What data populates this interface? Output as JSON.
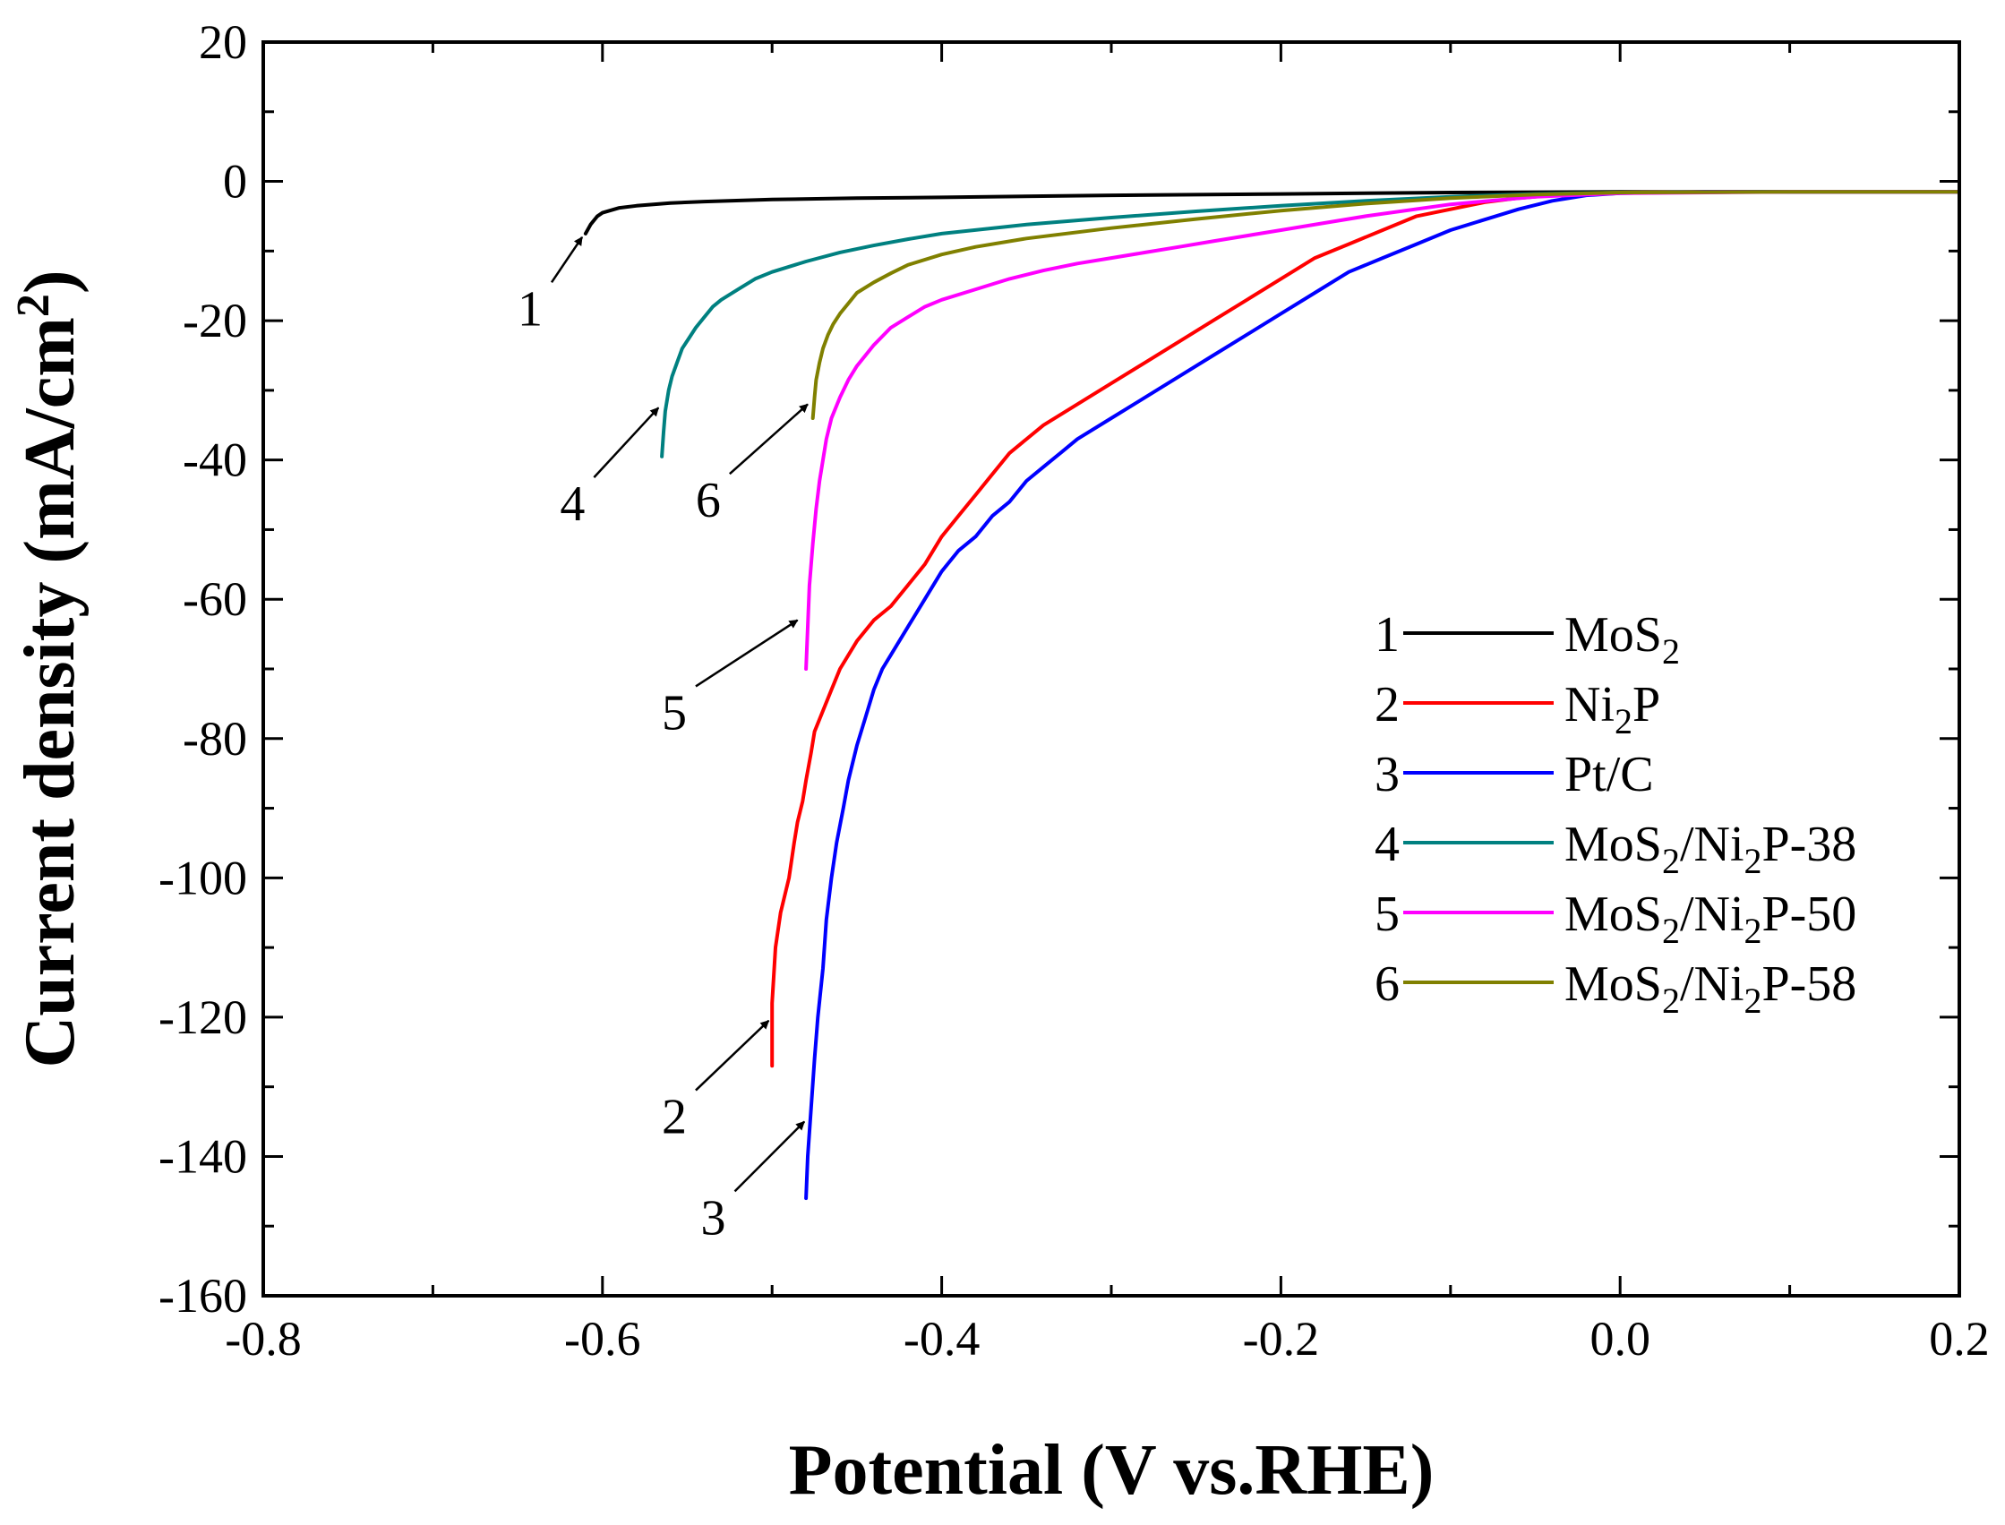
{
  "chart_data": {
    "type": "line",
    "xlabel": "Potential (V vs.RHE)",
    "ylabel": "Current density (mA/cm²)",
    "ylabel_parts": {
      "main": "Current density (mA/cm",
      "sup": "2",
      "close": ")"
    },
    "xlim": [
      -0.8,
      0.2
    ],
    "ylim": [
      -160,
      20
    ],
    "x_ticks": [
      -0.8,
      -0.6,
      -0.4,
      -0.2,
      0.0,
      0.2
    ],
    "x_tick_labels": [
      "-0.8",
      "-0.6",
      "-0.4",
      "-0.2",
      "0.0",
      "0.2"
    ],
    "y_ticks": [
      20,
      0,
      -20,
      -40,
      -60,
      -80,
      -100,
      -120,
      -140,
      -160
    ],
    "y_tick_labels": [
      "20",
      "0",
      "-20",
      "-40",
      "-60",
      "-80",
      "-100",
      "-120",
      "-140",
      "-160"
    ],
    "grid": false,
    "legend_position": "right",
    "series": [
      {
        "id": "1",
        "label": "MoS2",
        "label_parts": [
          {
            "t": "MoS"
          },
          {
            "t": "2",
            "sub": true
          }
        ],
        "color": "#000000",
        "x": [
          -0.61,
          -0.607,
          -0.603,
          -0.6,
          -0.59,
          -0.58,
          -0.56,
          -0.54,
          -0.5,
          -0.45,
          -0.4,
          -0.3,
          -0.2,
          -0.1,
          0.0,
          0.1,
          0.2
        ],
        "y": [
          -7.5,
          -6.2,
          -5.0,
          -4.5,
          -3.8,
          -3.5,
          -3.1,
          -2.9,
          -2.6,
          -2.4,
          -2.3,
          -2.0,
          -1.8,
          -1.6,
          -1.5,
          -1.5,
          -1.5
        ]
      },
      {
        "id": "2",
        "label": "Ni2P",
        "label_parts": [
          {
            "t": "Ni"
          },
          {
            "t": "2",
            "sub": true
          },
          {
            "t": "P"
          }
        ],
        "color": "#ff0000",
        "x": [
          -0.5,
          -0.5,
          -0.498,
          -0.495,
          -0.49,
          -0.487,
          -0.485,
          -0.482,
          -0.48,
          -0.477,
          -0.475,
          -0.47,
          -0.465,
          -0.46,
          -0.45,
          -0.44,
          -0.43,
          -0.42,
          -0.41,
          -0.4,
          -0.39,
          -0.38,
          -0.37,
          -0.36,
          -0.34,
          -0.32,
          -0.3,
          -0.28,
          -0.26,
          -0.24,
          -0.22,
          -0.2,
          -0.18,
          -0.16,
          -0.14,
          -0.12,
          -0.1,
          -0.08,
          -0.06,
          -0.04,
          -0.02,
          0.0,
          0.05,
          0.1,
          0.2
        ],
        "y": [
          -127,
          -118,
          -110,
          -105,
          -100,
          -95,
          -92,
          -89,
          -86,
          -82,
          -79,
          -76,
          -73,
          -70,
          -66,
          -63,
          -61,
          -58,
          -55,
          -51,
          -48,
          -45,
          -42,
          -39,
          -35,
          -32,
          -29,
          -26,
          -23,
          -20,
          -17,
          -14,
          -11,
          -9,
          -7,
          -5,
          -4,
          -3,
          -2.4,
          -2.0,
          -1.8,
          -1.6,
          -1.5,
          -1.5,
          -1.5
        ]
      },
      {
        "id": "3",
        "label": "Pt/C",
        "label_parts": [
          {
            "t": "Pt/C"
          }
        ],
        "color": "#0000ff",
        "x": [
          -0.48,
          -0.479,
          -0.477,
          -0.475,
          -0.473,
          -0.47,
          -0.468,
          -0.465,
          -0.462,
          -0.458,
          -0.455,
          -0.45,
          -0.445,
          -0.44,
          -0.435,
          -0.43,
          -0.42,
          -0.41,
          -0.4,
          -0.39,
          -0.38,
          -0.37,
          -0.36,
          -0.35,
          -0.34,
          -0.33,
          -0.32,
          -0.3,
          -0.28,
          -0.26,
          -0.24,
          -0.22,
          -0.2,
          -0.18,
          -0.16,
          -0.14,
          -0.12,
          -0.1,
          -0.08,
          -0.06,
          -0.04,
          -0.02,
          0.0,
          0.05,
          0.1,
          0.2
        ],
        "y": [
          -146,
          -140,
          -133,
          -126,
          -120,
          -113,
          -106,
          -100,
          -95,
          -90,
          -86,
          -81,
          -77,
          -73,
          -70,
          -68,
          -64,
          -60,
          -56,
          -53,
          -51,
          -48,
          -46,
          -43,
          -41,
          -39,
          -37,
          -34,
          -31,
          -28,
          -25,
          -22,
          -19,
          -16,
          -13,
          -11,
          -9,
          -7,
          -5.5,
          -4,
          -2.8,
          -2.0,
          -1.7,
          -1.5,
          -1.5,
          -1.5
        ]
      },
      {
        "id": "4",
        "label": "MoS2/Ni2P-38",
        "label_parts": [
          {
            "t": "MoS"
          },
          {
            "t": "2",
            "sub": true
          },
          {
            "t": "/Ni"
          },
          {
            "t": "2",
            "sub": true
          },
          {
            "t": "P-38"
          }
        ],
        "color": "#008080",
        "x": [
          -0.565,
          -0.564,
          -0.563,
          -0.561,
          -0.559,
          -0.556,
          -0.553,
          -0.549,
          -0.545,
          -0.54,
          -0.535,
          -0.53,
          -0.52,
          -0.51,
          -0.5,
          -0.48,
          -0.46,
          -0.44,
          -0.42,
          -0.4,
          -0.35,
          -0.3,
          -0.25,
          -0.2,
          -0.15,
          -0.1,
          -0.05,
          0.0,
          0.1,
          0.2
        ],
        "y": [
          -39.5,
          -36,
          -33,
          -30,
          -28,
          -26,
          -24,
          -22.5,
          -21,
          -19.5,
          -18,
          -17,
          -15.5,
          -14,
          -13,
          -11.5,
          -10.2,
          -9.2,
          -8.3,
          -7.5,
          -6.2,
          -5.2,
          -4.3,
          -3.5,
          -2.8,
          -2.2,
          -1.8,
          -1.6,
          -1.5,
          -1.5
        ]
      },
      {
        "id": "5",
        "label": "MoS2/Ni2P-50",
        "label_parts": [
          {
            "t": "MoS"
          },
          {
            "t": "2",
            "sub": true
          },
          {
            "t": "/Ni"
          },
          {
            "t": "2",
            "sub": true
          },
          {
            "t": "P-50"
          }
        ],
        "color": "#ff00ff",
        "x": [
          -0.48,
          -0.479,
          -0.478,
          -0.476,
          -0.474,
          -0.472,
          -0.47,
          -0.468,
          -0.465,
          -0.46,
          -0.455,
          -0.45,
          -0.44,
          -0.43,
          -0.42,
          -0.41,
          -0.4,
          -0.38,
          -0.36,
          -0.34,
          -0.32,
          -0.3,
          -0.28,
          -0.26,
          -0.24,
          -0.2,
          -0.15,
          -0.1,
          -0.05,
          0.0,
          0.1,
          0.2
        ],
        "y": [
          -70,
          -64,
          -58,
          -52,
          -47,
          -43,
          -40,
          -37,
          -34,
          -31,
          -28.5,
          -26.5,
          -23.5,
          -21,
          -19.5,
          -18,
          -17,
          -15.5,
          -14,
          -12.8,
          -11.8,
          -11,
          -10.2,
          -9.4,
          -8.6,
          -7,
          -5,
          -3.3,
          -2.2,
          -1.7,
          -1.5,
          -1.5
        ]
      },
      {
        "id": "6",
        "label": "MoS2/Ni2P-58",
        "label_parts": [
          {
            "t": "MoS"
          },
          {
            "t": "2",
            "sub": true
          },
          {
            "t": "/Ni"
          },
          {
            "t": "2",
            "sub": true
          },
          {
            "t": "P-58"
          }
        ],
        "color": "#808000",
        "x": [
          -0.476,
          -0.475,
          -0.474,
          -0.472,
          -0.47,
          -0.467,
          -0.464,
          -0.46,
          -0.455,
          -0.45,
          -0.44,
          -0.43,
          -0.42,
          -0.4,
          -0.38,
          -0.35,
          -0.3,
          -0.25,
          -0.2,
          -0.15,
          -0.1,
          -0.05,
          0.0,
          0.1,
          0.2
        ],
        "y": [
          -34,
          -31,
          -28.5,
          -26,
          -24,
          -22,
          -20.5,
          -19,
          -17.5,
          -16,
          -14.5,
          -13.2,
          -12,
          -10.5,
          -9.4,
          -8.2,
          -6.7,
          -5.4,
          -4.2,
          -3.2,
          -2.4,
          -1.9,
          -1.6,
          -1.5,
          -1.5
        ]
      }
    ],
    "annotations": [
      {
        "text": "1",
        "arrow_from": [
          -0.63,
          -14.5
        ],
        "arrow_to": [
          -0.612,
          -8.0
        ]
      },
      {
        "text": "2",
        "arrow_from": [
          -0.545,
          -130.5
        ],
        "arrow_to": [
          -0.502,
          -120.5
        ]
      },
      {
        "text": "3",
        "arrow_from": [
          -0.522,
          -145.0
        ],
        "arrow_to": [
          -0.481,
          -135.0
        ]
      },
      {
        "text": "4",
        "arrow_from": [
          -0.605,
          -42.5
        ],
        "arrow_to": [
          -0.567,
          -32.5
        ]
      },
      {
        "text": "5",
        "arrow_from": [
          -0.545,
          -72.5
        ],
        "arrow_to": [
          -0.485,
          -63.0
        ]
      },
      {
        "text": "6",
        "arrow_from": [
          -0.525,
          -42.0
        ],
        "arrow_to": [
          -0.479,
          -32.0
        ]
      }
    ]
  }
}
